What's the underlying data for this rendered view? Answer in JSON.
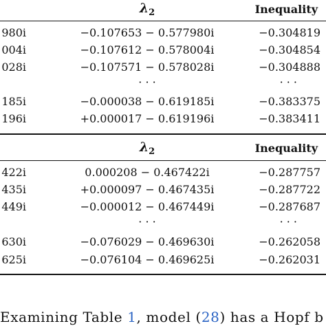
{
  "table1": {
    "header": {
      "lambda_symbol": "λ",
      "lambda_subscript": "2",
      "inequality": "Inequality"
    },
    "rows": [
      {
        "c1": "980i",
        "lambda2": "−0.107653 − 0.577980i",
        "inequality": "−0.304819"
      },
      {
        "c1": "004i",
        "lambda2": "−0.107612 − 0.578004i",
        "inequality": "−0.304854"
      },
      {
        "c1": "028i",
        "lambda2": "−0.107571 − 0.578028i",
        "inequality": "−0.304888"
      },
      {
        "c1": "",
        "lambda2": "· · ·",
        "inequality": "· · ·"
      },
      {
        "c1": "185i",
        "lambda2": "−0.000038 − 0.619185i",
        "inequality": "−0.383375"
      },
      {
        "c1": "196i",
        "lambda2": "+0.000017 − 0.619196i",
        "inequality": "−0.383411"
      }
    ]
  },
  "table2": {
    "header": {
      "lambda_symbol": "λ",
      "lambda_subscript": "2",
      "inequality": "Inequality"
    },
    "rows": [
      {
        "c1": "422i",
        "lambda2": "0.000208 − 0.467422i",
        "inequality": "−0.287757"
      },
      {
        "c1": "435i",
        "lambda2": "+0.000097 − 0.467435i",
        "inequality": "−0.287722"
      },
      {
        "c1": "449i",
        "lambda2": "−0.000012 − 0.467449i",
        "inequality": "−0.287687"
      },
      {
        "c1": "",
        "lambda2": "· · ·",
        "inequality": "· · ·"
      },
      {
        "c1": "630i",
        "lambda2": "−0.076029 − 0.469630i",
        "inequality": "−0.262058"
      },
      {
        "c1": "625i",
        "lambda2": "−0.076104 − 0.469625i",
        "inequality": "−0.262031"
      }
    ]
  },
  "paragraph": {
    "part1": "Examining Table ",
    "ref_table": "1",
    "part2": ", model (",
    "ref_model": "28",
    "part3": ") has a Hopf b"
  }
}
